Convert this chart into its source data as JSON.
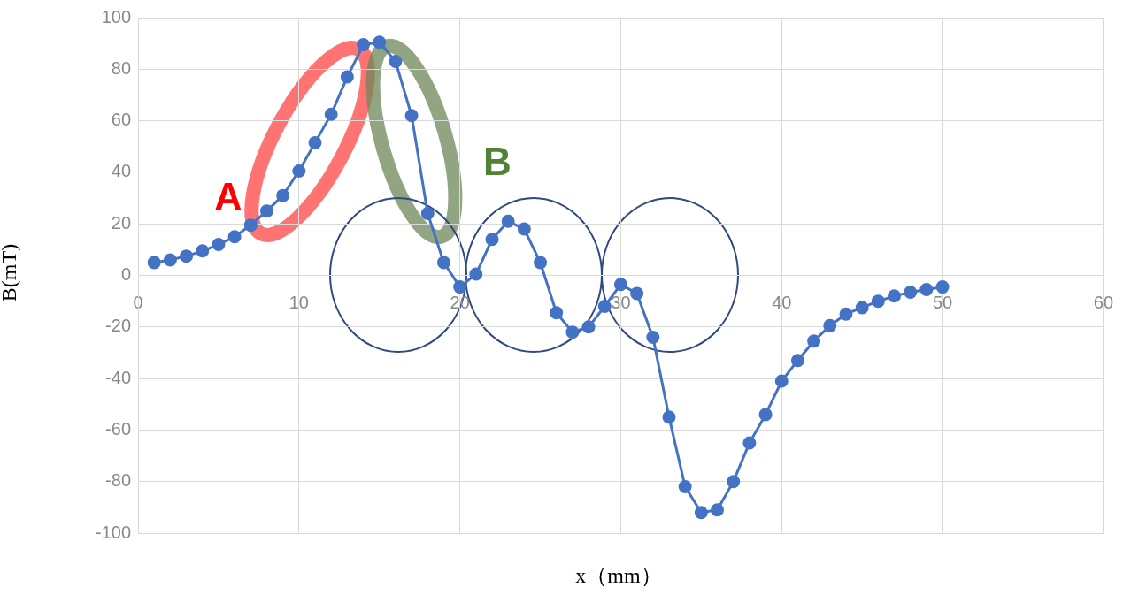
{
  "chart_data": {
    "type": "line",
    "xlabel": "x（mm）",
    "ylabel": "B(mT)",
    "x": [
      1,
      2,
      3,
      4,
      5,
      6,
      7,
      8,
      9,
      10,
      11,
      12,
      13,
      14,
      15,
      16,
      17,
      18,
      19,
      20,
      21,
      22,
      23,
      24,
      25,
      26,
      27,
      28,
      29,
      30,
      31,
      32,
      33,
      34,
      35,
      36,
      37,
      38,
      39,
      40,
      41,
      42,
      43,
      44,
      45,
      46,
      47,
      48,
      49,
      50
    ],
    "series": [
      {
        "color": "#4472c4",
        "values": [
          5,
          6,
          7.5,
          9.5,
          12,
          15,
          19.5,
          25,
          31,
          40.5,
          51.5,
          62.5,
          77,
          89.5,
          90.5,
          83,
          62,
          24,
          5,
          -4.5,
          0.5,
          14,
          21,
          18,
          5,
          -14.5,
          -22,
          -20,
          -12,
          -3.5,
          -7,
          -24,
          -55,
          -82,
          -92,
          -91,
          -80,
          -65,
          -54,
          -41,
          -33,
          -25.5,
          -19.5,
          -15,
          -12.5,
          -10,
          -8,
          -6.5,
          -5.5,
          -4.5
        ]
      }
    ],
    "xlim": [
      0,
      60
    ],
    "xticks": [
      0,
      10,
      20,
      30,
      40,
      50,
      60
    ],
    "ylim": [
      -100,
      100
    ],
    "yticks": [
      -100,
      -80,
      -60,
      -40,
      -20,
      0,
      20,
      40,
      60,
      80,
      100
    ],
    "grid": true,
    "marker": "circle",
    "line_style": "solid",
    "annotations": [
      "A",
      "B"
    ]
  }
}
